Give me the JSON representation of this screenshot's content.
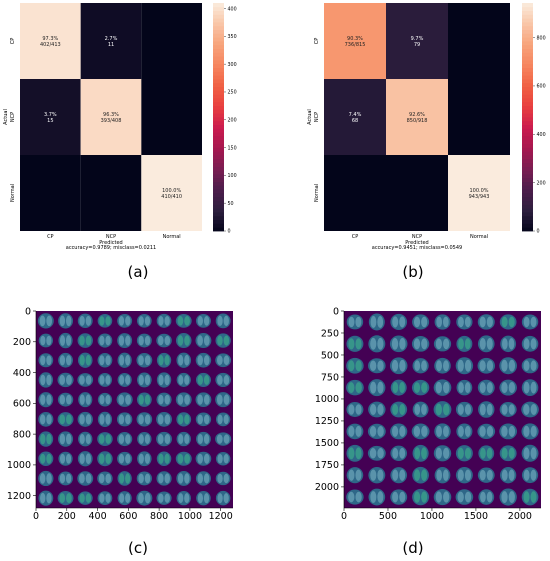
{
  "panels": [
    {
      "label": "(a)"
    },
    {
      "label": "(b)"
    },
    {
      "label": "(c)"
    },
    {
      "label": "(d)"
    }
  ],
  "colors": {
    "cmap": [
      "#03051a",
      "#2d1e3e",
      "#4c1d4b",
      "#7a1d52",
      "#a6174f",
      "#cb1b4f",
      "#e83f3f",
      "#f06043",
      "#f6855f",
      "#f7a37b",
      "#f9c5a7",
      "#faebdd"
    ],
    "mosaic_bg": "#440154",
    "lung_fill": "#2c728e",
    "lung_bright": "#3fbc8c"
  },
  "chart_data": [
    {
      "type": "heatmap",
      "panel": "(a)",
      "xlabel": "Predicted",
      "xlabel2": "accuracy=0.9789; misclass=0.0211",
      "ylabel": "Actual",
      "x_categories": [
        "CP",
        "NCP",
        "Normal"
      ],
      "y_categories": [
        "CP",
        "NCP",
        "Normal"
      ],
      "values": [
        [
          402,
          11,
          0
        ],
        [
          15,
          393,
          0
        ],
        [
          0,
          0,
          410
        ]
      ],
      "cell_text": [
        [
          "97.3%\n402/413",
          "2.7%\n11",
          ""
        ],
        [
          "3.7%\n15",
          "96.3%\n393/408",
          ""
        ],
        [
          "",
          "",
          "100.0%\n410/410"
        ]
      ],
      "colorbar": {
        "min": 0,
        "max": 410,
        "ticks": [
          0,
          50,
          100,
          150,
          200,
          250,
          300,
          350,
          400
        ]
      }
    },
    {
      "type": "heatmap",
      "panel": "(b)",
      "xlabel": "Predicted",
      "xlabel2": "accuracy=0.9451; misclass=0.0549",
      "ylabel": "Actual",
      "x_categories": [
        "CP",
        "NCP",
        "Normal"
      ],
      "y_categories": [
        "CP",
        "NCP",
        "Normal"
      ],
      "values": [
        [
          736,
          79,
          0
        ],
        [
          68,
          850,
          0
        ],
        [
          0,
          0,
          943
        ]
      ],
      "cell_text": [
        [
          "90.3%\n736/815",
          "9.7%\n79",
          ""
        ],
        [
          "7.4%\n68",
          "92.6%\n850/918",
          ""
        ],
        [
          "",
          "",
          "100.0%\n943/943"
        ]
      ],
      "colorbar": {
        "min": 0,
        "max": 943,
        "ticks": [
          0,
          200,
          400,
          600,
          800
        ]
      }
    },
    {
      "type": "image",
      "panel": "(c)",
      "grid": [
        10,
        10
      ],
      "xlim": [
        0,
        1280
      ],
      "ylim": [
        0,
        1280
      ],
      "xticks": [
        0,
        200,
        400,
        600,
        800,
        1000,
        1200
      ],
      "yticks": [
        0,
        200,
        400,
        600,
        800,
        1000,
        1200
      ]
    },
    {
      "type": "image",
      "panel": "(d)",
      "grid": [
        9,
        9
      ],
      "xlim": [
        0,
        2240
      ],
      "ylim": [
        0,
        2240
      ],
      "xticks": [
        0,
        500,
        1000,
        1500,
        2000
      ],
      "yticks": [
        0,
        250,
        500,
        750,
        1000,
        1250,
        1500,
        1750,
        2000
      ]
    }
  ]
}
